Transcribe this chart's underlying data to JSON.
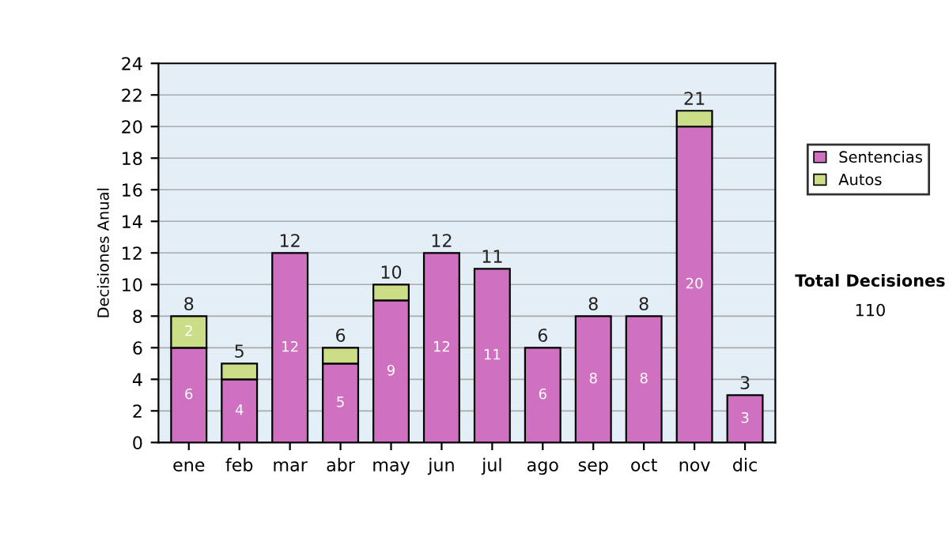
{
  "chart_data": {
    "type": "bar",
    "stacked": true,
    "ylabel": "Decisiones Anual",
    "categories": [
      "ene",
      "feb",
      "mar",
      "abr",
      "may",
      "jun",
      "jul",
      "ago",
      "sep",
      "oct",
      "nov",
      "dic"
    ],
    "series": [
      {
        "name": "Sentencias",
        "color": "#d070c0",
        "values": [
          6,
          4,
          12,
          5,
          9,
          12,
          11,
          6,
          8,
          8,
          20,
          3
        ],
        "value_labels": [
          "6",
          "4",
          "12",
          "5",
          "9",
          "12",
          "11",
          "6",
          "8",
          "8",
          "20",
          "3"
        ]
      },
      {
        "name": "Autos",
        "color": "#ccdd88",
        "values": [
          2,
          1,
          0,
          1,
          1,
          0,
          0,
          0,
          0,
          0,
          1,
          0
        ],
        "value_labels": [
          "2",
          null,
          null,
          null,
          null,
          null,
          null,
          null,
          null,
          null,
          null,
          null
        ]
      }
    ],
    "totals": [
      "8",
      "5",
      "12",
      "6",
      "10",
      "12",
      "11",
      "6",
      "8",
      "8",
      "21",
      "3"
    ],
    "ylim": [
      0,
      24
    ],
    "yticks": [
      0,
      2,
      4,
      6,
      8,
      10,
      12,
      14,
      16,
      18,
      20,
      22,
      24
    ],
    "grid": "y",
    "legend": "right",
    "annotations": [
      "Total Decisiones",
      "110"
    ]
  }
}
